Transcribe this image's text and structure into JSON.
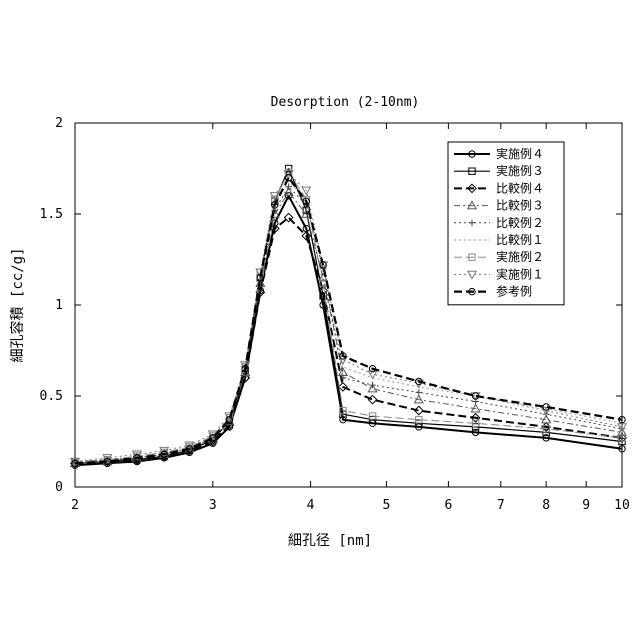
{
  "chart_data": {
    "type": "line",
    "title": "Desorption (2-10nm)",
    "xlabel": "細孔径 [nm]",
    "ylabel": "細孔容積 [cc/g]",
    "x_scale": "log",
    "xlim": [
      2,
      10
    ],
    "ylim": [
      0,
      2
    ],
    "x_ticks": [
      "2",
      "3",
      "4",
      "5",
      "6",
      "7",
      "8",
      "9",
      "10"
    ],
    "y_ticks": [
      "0",
      "0.5",
      "1",
      "1.5",
      "2"
    ],
    "grid": false,
    "legend_position": "top-right",
    "series": [
      {
        "name": "実施例４",
        "line": "solid",
        "width": 2,
        "color": "#000000",
        "marker": "circle",
        "x": [
          2.0,
          2.2,
          2.4,
          2.6,
          2.8,
          3.0,
          3.15,
          3.3,
          3.45,
          3.6,
          3.75,
          3.95,
          4.15,
          4.4,
          4.8,
          5.5,
          6.5,
          8.0,
          10.0
        ],
        "y": [
          0.12,
          0.13,
          0.14,
          0.16,
          0.19,
          0.24,
          0.33,
          0.6,
          1.08,
          1.45,
          1.6,
          1.42,
          1.0,
          0.37,
          0.35,
          0.33,
          0.3,
          0.27,
          0.21
        ]
      },
      {
        "name": "実施例３",
        "line": "solid",
        "width": 1.2,
        "color": "#000000",
        "marker": "square",
        "x": [
          2.0,
          2.2,
          2.4,
          2.6,
          2.8,
          3.0,
          3.15,
          3.3,
          3.45,
          3.6,
          3.75,
          3.95,
          4.15,
          4.4,
          4.8,
          5.5,
          6.5,
          8.0,
          10.0
        ],
        "y": [
          0.13,
          0.14,
          0.15,
          0.17,
          0.2,
          0.26,
          0.36,
          0.64,
          1.15,
          1.57,
          1.75,
          1.52,
          1.05,
          0.4,
          0.37,
          0.35,
          0.33,
          0.3,
          0.25
        ]
      },
      {
        "name": "比較例４",
        "line": "dashed",
        "width": 2,
        "color": "#000000",
        "marker": "diamond",
        "x": [
          2.0,
          2.2,
          2.4,
          2.6,
          2.8,
          3.0,
          3.15,
          3.3,
          3.45,
          3.6,
          3.75,
          3.95,
          4.15,
          4.4,
          4.8,
          5.5,
          6.5,
          8.0,
          10.0
        ],
        "y": [
          0.13,
          0.14,
          0.15,
          0.17,
          0.2,
          0.25,
          0.34,
          0.6,
          1.07,
          1.42,
          1.48,
          1.38,
          1.08,
          0.55,
          0.48,
          0.42,
          0.38,
          0.33,
          0.27
        ]
      },
      {
        "name": "比較例３",
        "line": "dashdot",
        "width": 1,
        "color": "#555555",
        "marker": "triangle",
        "x": [
          2.0,
          2.2,
          2.4,
          2.6,
          2.8,
          3.0,
          3.15,
          3.3,
          3.45,
          3.6,
          3.75,
          3.95,
          4.15,
          4.4,
          4.8,
          5.5,
          6.5,
          8.0,
          10.0
        ],
        "y": [
          0.13,
          0.14,
          0.16,
          0.18,
          0.21,
          0.26,
          0.36,
          0.63,
          1.12,
          1.5,
          1.62,
          1.5,
          1.15,
          0.63,
          0.54,
          0.48,
          0.43,
          0.37,
          0.3
        ]
      },
      {
        "name": "比較例２",
        "line": "dotted",
        "width": 1,
        "color": "#444444",
        "marker": "plus",
        "x": [
          2.0,
          2.2,
          2.4,
          2.6,
          2.8,
          3.0,
          3.15,
          3.3,
          3.45,
          3.6,
          3.75,
          3.95,
          4.15,
          4.4,
          4.8,
          5.5,
          6.5,
          8.0,
          10.0
        ],
        "y": [
          0.13,
          0.15,
          0.16,
          0.18,
          0.21,
          0.27,
          0.37,
          0.64,
          1.14,
          1.52,
          1.65,
          1.55,
          1.2,
          0.6,
          0.56,
          0.52,
          0.47,
          0.4,
          0.32
        ]
      },
      {
        "name": "比較例１",
        "line": "dotted",
        "width": 1,
        "color": "#999999",
        "marker": "none",
        "x": [
          2.0,
          2.2,
          2.4,
          2.6,
          2.8,
          3.0,
          3.15,
          3.3,
          3.45,
          3.6,
          3.75,
          3.95,
          4.15,
          4.4,
          4.8,
          5.5,
          6.5,
          8.0,
          10.0
        ],
        "y": [
          0.14,
          0.15,
          0.17,
          0.19,
          0.22,
          0.28,
          0.38,
          0.66,
          1.16,
          1.55,
          1.68,
          1.58,
          1.22,
          0.66,
          0.6,
          0.55,
          0.5,
          0.43,
          0.35
        ]
      },
      {
        "name": "実施例２",
        "line": "dashed",
        "width": 1,
        "color": "#888888",
        "marker": "square",
        "x": [
          2.0,
          2.2,
          2.4,
          2.6,
          2.8,
          3.0,
          3.15,
          3.3,
          3.45,
          3.6,
          3.75,
          3.95,
          4.15,
          4.4,
          4.8,
          5.5,
          6.5,
          8.0,
          10.0
        ],
        "y": [
          0.14,
          0.15,
          0.17,
          0.19,
          0.22,
          0.28,
          0.38,
          0.66,
          1.18,
          1.58,
          1.73,
          1.58,
          1.12,
          0.42,
          0.39,
          0.37,
          0.35,
          0.32,
          0.27
        ]
      },
      {
        "name": "実施例１",
        "line": "dotted",
        "width": 1,
        "color": "#777777",
        "marker": "triangle-down",
        "x": [
          2.0,
          2.2,
          2.4,
          2.6,
          2.8,
          3.0,
          3.15,
          3.3,
          3.45,
          3.6,
          3.75,
          3.95,
          4.15,
          4.4,
          4.8,
          5.5,
          6.5,
          8.0,
          10.0
        ],
        "y": [
          0.14,
          0.16,
          0.18,
          0.2,
          0.23,
          0.29,
          0.39,
          0.67,
          1.18,
          1.6,
          1.72,
          1.63,
          1.22,
          0.7,
          0.62,
          0.57,
          0.5,
          0.42,
          0.33
        ]
      },
      {
        "name": "参考例",
        "line": "dashed",
        "width": 2.2,
        "color": "#000000",
        "marker": "circle",
        "x": [
          2.0,
          2.2,
          2.4,
          2.6,
          2.8,
          3.0,
          3.15,
          3.3,
          3.45,
          3.6,
          3.75,
          3.95,
          4.15,
          4.4,
          4.8,
          5.5,
          6.5,
          8.0,
          10.0
        ],
        "y": [
          0.13,
          0.14,
          0.16,
          0.18,
          0.21,
          0.27,
          0.37,
          0.65,
          1.15,
          1.55,
          1.7,
          1.57,
          1.22,
          0.72,
          0.65,
          0.58,
          0.5,
          0.44,
          0.37
        ]
      }
    ]
  }
}
